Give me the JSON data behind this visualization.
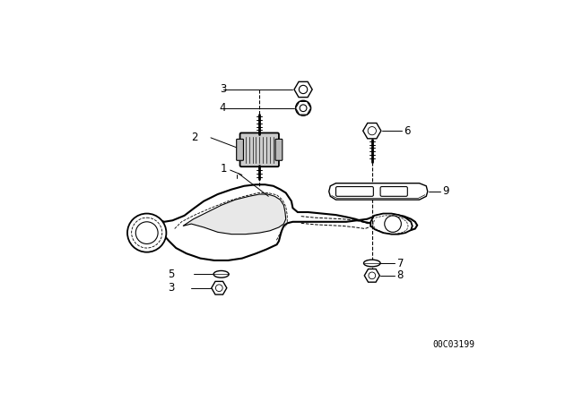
{
  "background_color": "#ffffff",
  "catalog_number": "00C03199",
  "line_color": "#000000",
  "label_fontsize": 8.5,
  "catalog_fontsize": 7,
  "figsize": [
    6.4,
    4.48
  ],
  "dpi": 100
}
